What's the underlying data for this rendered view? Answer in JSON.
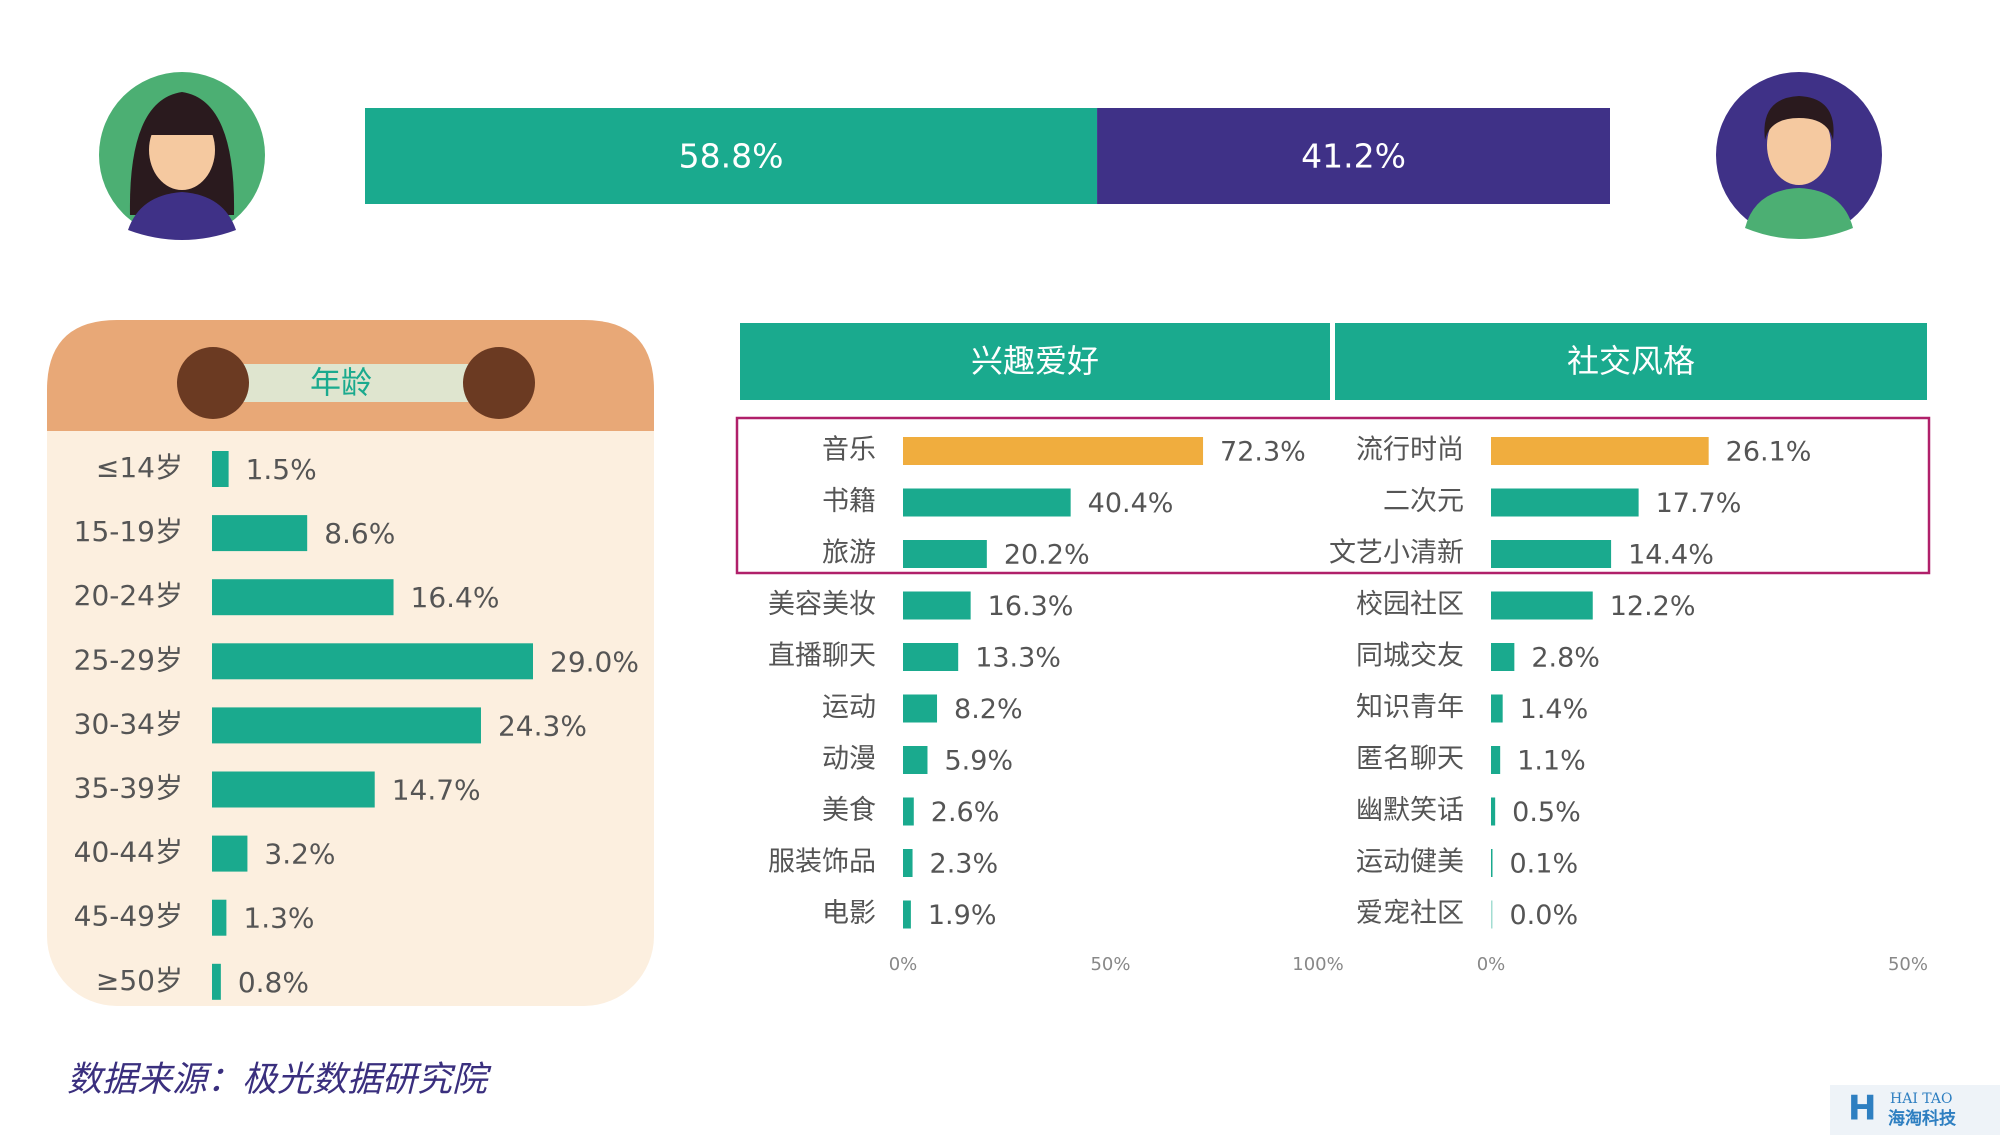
{
  "chart_data": [
    {
      "type": "share_bar",
      "categories": [
        null,
        null
      ],
      "values": [
        58.8,
        41.2
      ],
      "value_labels": [
        "58.8%",
        "41.2%"
      ],
      "colors": [
        "#1aaa8e",
        "#3f3187"
      ]
    },
    {
      "type": "hbar",
      "title": "年龄",
      "categories": [
        "≤14岁",
        "15-19岁",
        "20-24岁",
        "25-29岁",
        "30-34岁",
        "35-39岁",
        "40-44岁",
        "45-49岁",
        "≥50岁"
      ],
      "values": [
        1.5,
        8.6,
        16.4,
        29.0,
        24.3,
        14.7,
        3.2,
        1.3,
        0.8
      ],
      "value_labels": [
        "1.5%",
        "8.6%",
        "16.4%",
        "29.0%",
        "24.3%",
        "14.7%",
        "3.2%",
        "1.3%",
        "0.8%"
      ],
      "color": "#1aaa8e"
    },
    {
      "type": "hbar",
      "title": "兴趣爱好",
      "categories": [
        "音乐",
        "书籍",
        "旅游",
        "美容美妆",
        "直播聊天",
        "运动",
        "动漫",
        "美食",
        "服装饰品",
        "电影"
      ],
      "values": [
        72.3,
        40.4,
        20.2,
        16.3,
        13.3,
        8.2,
        5.9,
        2.6,
        2.3,
        1.9
      ],
      "value_labels": [
        "72.3%",
        "40.4%",
        "20.2%",
        "16.3%",
        "13.3%",
        "8.2%",
        "5.9%",
        "2.6%",
        "2.3%",
        "1.9%"
      ],
      "colors": [
        "#f0ad3e",
        "#1aaa8e",
        "#1aaa8e",
        "#1aaa8e",
        "#1aaa8e",
        "#1aaa8e",
        "#1aaa8e",
        "#1aaa8e",
        "#1aaa8e",
        "#1aaa8e"
      ],
      "xlim": [
        0,
        100
      ],
      "xticks": [
        {
          "value": 0,
          "label": "0%"
        },
        {
          "value": 50,
          "label": "50%"
        },
        {
          "value": 100,
          "label": "100%"
        }
      ]
    },
    {
      "type": "hbar",
      "title": "社交风格",
      "categories": [
        "流行时尚",
        "二次元",
        "文艺小清新",
        "校园社区",
        "同城交友",
        "知识青年",
        "匿名聊天",
        "幽默笑话",
        "运动健美",
        "爱宠社区"
      ],
      "values": [
        26.1,
        17.7,
        14.4,
        12.2,
        2.8,
        1.4,
        1.1,
        0.5,
        0.1,
        0.0
      ],
      "value_labels": [
        "26.1%",
        "17.7%",
        "14.4%",
        "12.2%",
        "2.8%",
        "1.4%",
        "1.1%",
        "0.5%",
        "0.1%",
        "0.0%"
      ],
      "colors": [
        "#f0ad3e",
        "#1aaa8e",
        "#1aaa8e",
        "#1aaa8e",
        "#1aaa8e",
        "#1aaa8e",
        "#1aaa8e",
        "#1aaa8e",
        "#1aaa8e",
        "#1aaa8e"
      ],
      "xlim": [
        0,
        50
      ],
      "xticks": [
        {
          "value": 0,
          "label": "0%"
        },
        {
          "value": 50,
          "label": "50%"
        }
      ]
    }
  ],
  "source": "数据来源：极光数据研究院",
  "logo": {
    "en": "HAI TAO",
    "cn": "海淘科技"
  }
}
